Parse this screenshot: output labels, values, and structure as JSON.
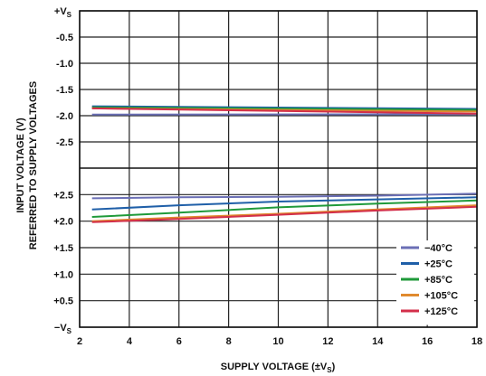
{
  "chart_data": {
    "type": "line",
    "xlabel": "SUPPLY VOLTAGE (±V",
    "xlabel_sub": "S",
    "xlabel_close": ")",
    "ylabel_line1": "INPUT VOLTAGE (V)",
    "ylabel_line2": "REFERRED TO SUPPLY VOLTAGES",
    "xlim": [
      2,
      18
    ],
    "x_ticks": [
      "2",
      "4",
      "6",
      "8",
      "10",
      "12",
      "14",
      "16",
      "18"
    ],
    "upper_panel": {
      "ylim": [
        -3.0,
        0
      ],
      "y_ticks": [
        {
          "value": 0,
          "label": "+V",
          "sub": "S"
        },
        {
          "value": -0.5,
          "label": "-0.5"
        },
        {
          "value": -1.0,
          "label": "-1.0"
        },
        {
          "value": -1.5,
          "label": "-1.5"
        },
        {
          "value": -2.0,
          "label": "-2.0"
        },
        {
          "value": -2.5,
          "label": "-2.5"
        }
      ]
    },
    "lower_panel": {
      "ylim": [
        0,
        3.0
      ],
      "y_ticks": [
        {
          "value": 2.5,
          "label": "+2.5"
        },
        {
          "value": 2.0,
          "label": "+2.0"
        },
        {
          "value": 1.5,
          "label": "+1.5"
        },
        {
          "value": 1.0,
          "label": "+1.0"
        },
        {
          "value": 0.5,
          "label": "+0.5"
        },
        {
          "value": 0,
          "label": "−V",
          "sub": "S"
        }
      ]
    },
    "series": [
      {
        "name": "−40°C",
        "color": "#6b6fb5",
        "upper": {
          "x": [
            2.5,
            18
          ],
          "y": [
            -1.98,
            -1.97
          ]
        },
        "lower": {
          "x": [
            2.5,
            6,
            10,
            14,
            18
          ],
          "y": [
            2.43,
            2.45,
            2.46,
            2.48,
            2.52
          ]
        }
      },
      {
        "name": "+25°C",
        "color": "#1f5fa8",
        "upper": {
          "x": [
            2.5,
            18
          ],
          "y": [
            -1.82,
            -1.87
          ]
        },
        "lower": {
          "x": [
            2.5,
            6,
            10,
            14,
            18
          ],
          "y": [
            2.22,
            2.3,
            2.37,
            2.41,
            2.45
          ]
        }
      },
      {
        "name": "+85°C",
        "color": "#1f9a3a",
        "upper": {
          "x": [
            2.5,
            18
          ],
          "y": [
            -1.84,
            -1.89
          ]
        },
        "lower": {
          "x": [
            2.5,
            6,
            10,
            14,
            18
          ],
          "y": [
            2.08,
            2.16,
            2.26,
            2.33,
            2.39
          ]
        }
      },
      {
        "name": "+105°C",
        "color": "#e08a2e",
        "upper": {
          "x": [
            2.5,
            18
          ],
          "y": [
            -1.86,
            -1.92
          ]
        },
        "lower": {
          "x": [
            2.5,
            6,
            10,
            14,
            18
          ],
          "y": [
            2.0,
            2.07,
            2.14,
            2.22,
            2.3
          ]
        }
      },
      {
        "name": "+125°C",
        "color": "#d32f4a",
        "upper": {
          "x": [
            2.5,
            18
          ],
          "y": [
            -1.86,
            -1.96
          ]
        },
        "lower": {
          "x": [
            2.5,
            6,
            10,
            14,
            18
          ],
          "y": [
            1.98,
            2.04,
            2.12,
            2.2,
            2.27
          ]
        }
      }
    ],
    "legend_position": "bottom-right",
    "grid": true
  }
}
